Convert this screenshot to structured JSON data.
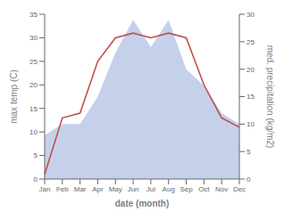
{
  "chart_data": {
    "type": "line",
    "xlabel": "date (month)",
    "ylabel": "max temp (C)",
    "y2label": "med. precipitation (kg/m2)",
    "categories": [
      "Jan",
      "Feb",
      "Mar",
      "Apr",
      "May",
      "Jun",
      "Jul",
      "Aug",
      "Sep",
      "Oct",
      "Nov",
      "Dec"
    ],
    "series": [
      {
        "type": "area",
        "axis": "y2",
        "color": "#bbc9e8",
        "values": [
          8,
          10,
          10,
          15,
          23,
          29,
          24,
          29,
          20,
          17,
          12,
          10
        ]
      },
      {
        "type": "line",
        "color": "#c0504d",
        "values": [
          1,
          13,
          14,
          25,
          30,
          31,
          30,
          31,
          30,
          20,
          13,
          11
        ]
      }
    ],
    "ylim": [
      0,
      35
    ],
    "yticks": [
      0,
      5,
      10,
      15,
      20,
      25,
      30,
      35
    ],
    "y2lim": [
      0,
      30
    ],
    "y2ticks": [
      0,
      5,
      10,
      15,
      20,
      25,
      30
    ]
  }
}
